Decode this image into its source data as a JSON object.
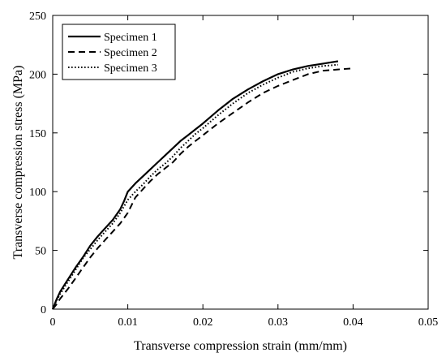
{
  "chart_data": {
    "type": "line",
    "title": "",
    "xlabel": "Transverse compression strain (mm/mm)",
    "ylabel": "Transverse compression stress (MPa)",
    "xlim": [
      0,
      0.05
    ],
    "ylim": [
      0,
      250
    ],
    "x_ticks": [
      0,
      0.01,
      0.02,
      0.03,
      0.04,
      0.05
    ],
    "x_tick_labels": [
      "0",
      "0.01",
      "0.02",
      "0.03",
      "0.04",
      "0.05"
    ],
    "y_ticks": [
      0,
      50,
      100,
      150,
      200,
      250
    ],
    "y_tick_labels": [
      "0",
      "50",
      "100",
      "150",
      "200",
      "250"
    ],
    "grid": false,
    "legend_position": "top-left",
    "series": [
      {
        "name": "Specimen 1",
        "style": "solid",
        "color": "#000000",
        "points": [
          [
            0,
            0
          ],
          [
            0.0005,
            8
          ],
          [
            0.001,
            15
          ],
          [
            0.002,
            25
          ],
          [
            0.003,
            35
          ],
          [
            0.004,
            44
          ],
          [
            0.005,
            54
          ],
          [
            0.006,
            62
          ],
          [
            0.007,
            69
          ],
          [
            0.008,
            76
          ],
          [
            0.009,
            85
          ],
          [
            0.0095,
            92
          ],
          [
            0.01,
            100
          ],
          [
            0.011,
            107
          ],
          [
            0.012,
            113
          ],
          [
            0.013,
            119
          ],
          [
            0.014,
            125
          ],
          [
            0.015,
            131
          ],
          [
            0.016,
            137
          ],
          [
            0.017,
            143
          ],
          [
            0.018,
            148
          ],
          [
            0.019,
            153
          ],
          [
            0.02,
            158
          ],
          [
            0.022,
            169
          ],
          [
            0.024,
            179
          ],
          [
            0.026,
            187
          ],
          [
            0.028,
            194
          ],
          [
            0.03,
            200
          ],
          [
            0.032,
            204
          ],
          [
            0.034,
            207
          ],
          [
            0.036,
            209
          ],
          [
            0.037,
            210
          ],
          [
            0.038,
            211
          ]
        ]
      },
      {
        "name": "Specimen 2",
        "style": "dashed",
        "color": "#000000",
        "points": [
          [
            0,
            0
          ],
          [
            0.0005,
            4
          ],
          [
            0.001,
            9
          ],
          [
            0.002,
            17
          ],
          [
            0.003,
            26
          ],
          [
            0.004,
            35
          ],
          [
            0.005,
            44
          ],
          [
            0.006,
            52
          ],
          [
            0.007,
            59
          ],
          [
            0.008,
            66
          ],
          [
            0.009,
            73
          ],
          [
            0.01,
            82
          ],
          [
            0.011,
            95
          ],
          [
            0.012,
            102
          ],
          [
            0.013,
            109
          ],
          [
            0.014,
            115
          ],
          [
            0.015,
            120
          ],
          [
            0.016,
            125
          ],
          [
            0.017,
            132
          ],
          [
            0.018,
            138
          ],
          [
            0.019,
            143
          ],
          [
            0.02,
            148
          ],
          [
            0.022,
            158
          ],
          [
            0.024,
            167
          ],
          [
            0.026,
            176
          ],
          [
            0.028,
            184
          ],
          [
            0.03,
            190
          ],
          [
            0.032,
            195
          ],
          [
            0.034,
            200
          ],
          [
            0.036,
            203
          ],
          [
            0.038,
            204
          ],
          [
            0.04,
            205
          ]
        ]
      },
      {
        "name": "Specimen 3",
        "style": "dotted",
        "color": "#000000",
        "points": [
          [
            0,
            0
          ],
          [
            0.0005,
            7
          ],
          [
            0.001,
            13
          ],
          [
            0.002,
            23
          ],
          [
            0.003,
            33
          ],
          [
            0.004,
            43
          ],
          [
            0.005,
            51
          ],
          [
            0.006,
            59
          ],
          [
            0.007,
            66
          ],
          [
            0.008,
            73
          ],
          [
            0.009,
            82
          ],
          [
            0.01,
            93
          ],
          [
            0.011,
            100
          ],
          [
            0.012,
            106
          ],
          [
            0.013,
            113
          ],
          [
            0.014,
            119
          ],
          [
            0.015,
            124
          ],
          [
            0.016,
            130
          ],
          [
            0.017,
            137
          ],
          [
            0.018,
            143
          ],
          [
            0.019,
            149
          ],
          [
            0.02,
            154
          ],
          [
            0.022,
            165
          ],
          [
            0.024,
            175
          ],
          [
            0.026,
            184
          ],
          [
            0.028,
            191
          ],
          [
            0.03,
            197
          ],
          [
            0.032,
            202
          ],
          [
            0.034,
            205
          ],
          [
            0.036,
            207
          ],
          [
            0.038,
            208
          ]
        ]
      }
    ]
  }
}
